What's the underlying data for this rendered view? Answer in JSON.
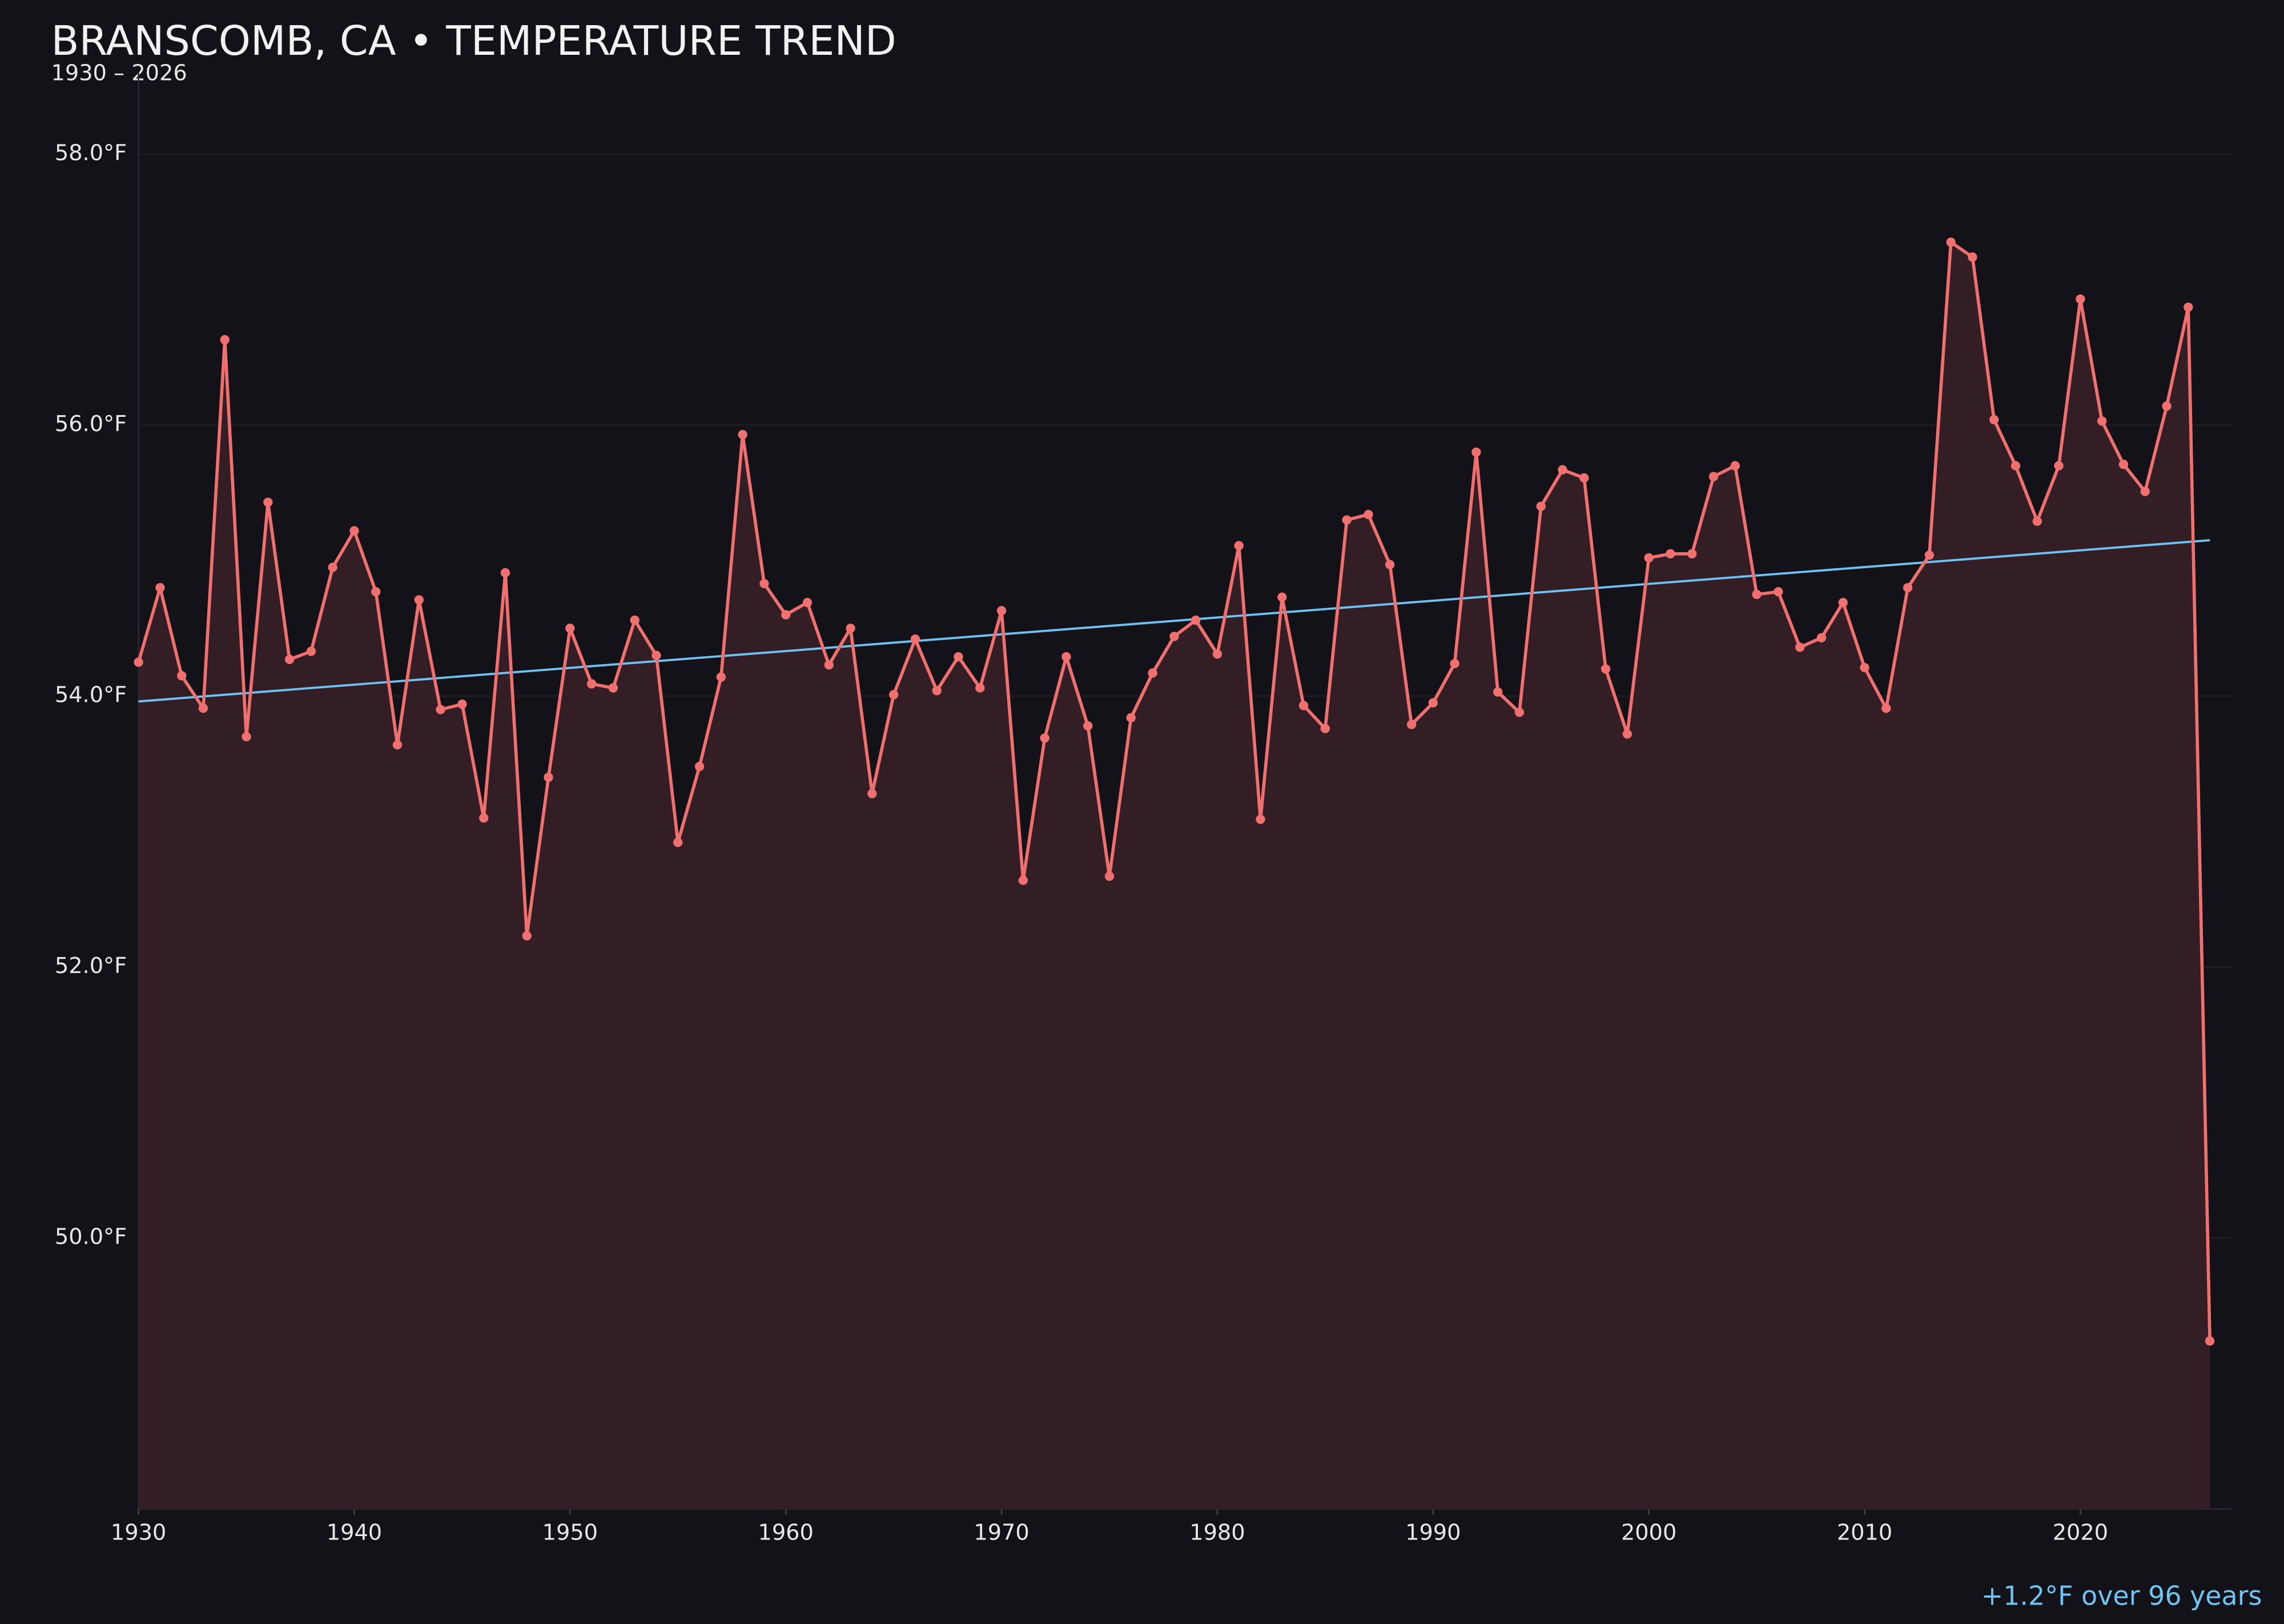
{
  "chart_data": {
    "type": "line",
    "title": "BRANSCOMB, CA • TEMPERATURE TREND",
    "subtitle": "1930 – 2026",
    "annotation": "+1.2°F over 96 years",
    "x": [
      1930,
      1931,
      1932,
      1933,
      1934,
      1935,
      1936,
      1937,
      1938,
      1939,
      1940,
      1941,
      1942,
      1943,
      1944,
      1945,
      1946,
      1947,
      1948,
      1949,
      1950,
      1951,
      1952,
      1953,
      1954,
      1955,
      1956,
      1957,
      1958,
      1959,
      1960,
      1961,
      1962,
      1963,
      1964,
      1965,
      1966,
      1967,
      1968,
      1969,
      1970,
      1971,
      1972,
      1973,
      1974,
      1975,
      1976,
      1977,
      1978,
      1979,
      1980,
      1981,
      1982,
      1983,
      1984,
      1985,
      1986,
      1987,
      1988,
      1989,
      1990,
      1991,
      1992,
      1993,
      1994,
      1995,
      1996,
      1997,
      1998,
      1999,
      2000,
      2001,
      2002,
      2003,
      2004,
      2005,
      2006,
      2007,
      2008,
      2009,
      2010,
      2011,
      2012,
      2013,
      2014,
      2015,
      2016,
      2017,
      2018,
      2019,
      2020,
      2021,
      2022,
      2023,
      2024,
      2025,
      2026
    ],
    "series": [
      {
        "color": "#f07070",
        "fill": "#341e25",
        "values": [
          54.25,
          54.8,
          54.15,
          53.91,
          56.63,
          53.7,
          55.43,
          54.27,
          54.33,
          54.95,
          55.22,
          54.77,
          53.64,
          54.71,
          53.9,
          53.94,
          53.1,
          54.91,
          52.23,
          53.4,
          54.5,
          54.09,
          54.06,
          54.56,
          54.3,
          52.92,
          53.48,
          54.14,
          55.93,
          54.83,
          54.6,
          54.69,
          54.23,
          54.5,
          53.28,
          54.01,
          54.42,
          54.04,
          54.29,
          54.06,
          54.63,
          52.64,
          53.69,
          54.29,
          53.78,
          52.67,
          53.84,
          54.17,
          54.44,
          54.56,
          54.31,
          55.11,
          53.09,
          54.73,
          53.93,
          53.76,
          55.3,
          55.34,
          54.97,
          53.79,
          53.95,
          54.24,
          55.8,
          54.03,
          53.88,
          55.4,
          55.67,
          55.61,
          54.2,
          53.72,
          55.02,
          55.05,
          55.05,
          55.62,
          55.7,
          54.75,
          54.77,
          54.36,
          54.43,
          54.69,
          54.21,
          53.91,
          54.8,
          55.04,
          57.35,
          57.24,
          56.04,
          55.7,
          55.29,
          55.7,
          56.93,
          56.03,
          55.71,
          55.51,
          56.14,
          56.87,
          49.24
        ]
      }
    ],
    "trend": {
      "x": [
        1930,
        2026
      ],
      "values": [
        53.96,
        55.15
      ],
      "color": "#6ec3f2"
    },
    "xlim": [
      1930,
      2027
    ],
    "ylim": [
      48.0,
      58.6
    ],
    "xticks": [
      1930,
      1940,
      1950,
      1960,
      1970,
      1980,
      1990,
      2000,
      2010,
      2020
    ],
    "yticks": [
      {
        "value": 50,
        "label": "50.0°F"
      },
      {
        "value": 52,
        "label": "52.0°F"
      },
      {
        "value": 54,
        "label": "54.0°F"
      },
      {
        "value": 56,
        "label": "56.0°F"
      },
      {
        "value": 58,
        "label": "58.0°F"
      }
    ],
    "grid": true
  }
}
